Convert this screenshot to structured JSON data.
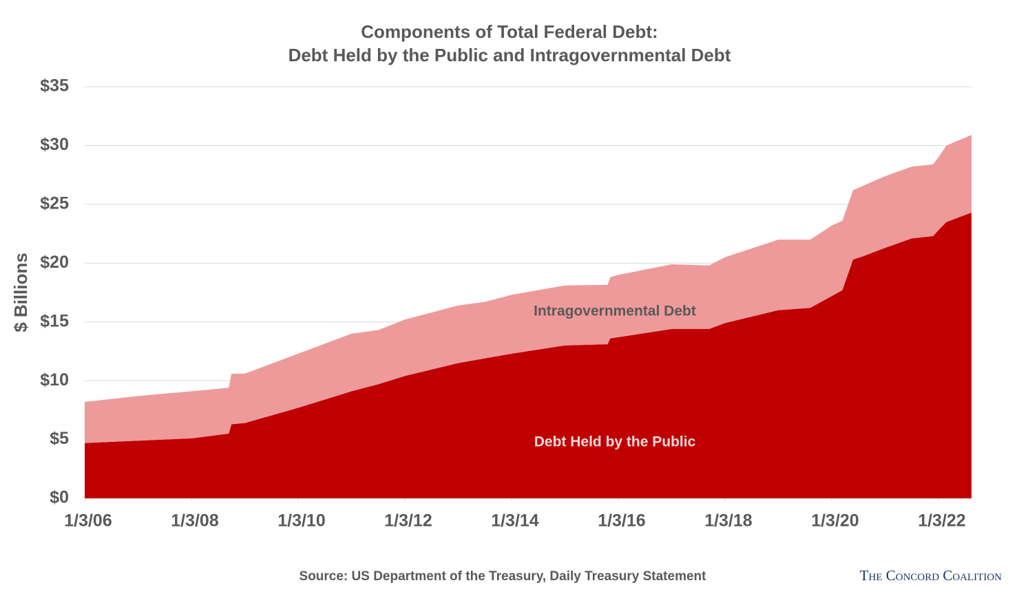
{
  "chart_data": {
    "type": "stacked_area",
    "title": "Components of Total Federal Debt:",
    "subtitle": "Debt Held by the Public and Intragovernmental Debt",
    "y_label": "$ Billions",
    "source": "Source: US Department of the Treasury, Daily Treasury Statement",
    "brand": "The Concord Coalition",
    "x": [
      2006,
      2007,
      2008,
      2008.7,
      2008.75,
      2009,
      2010,
      2011,
      2011.5,
      2012,
      2013,
      2013.5,
      2014,
      2015,
      2015.8,
      2015.85,
      2016,
      2017,
      2017.7,
      2018,
      2019,
      2019.6,
      2020,
      2020.2,
      2020.4,
      2020.6,
      2021,
      2021.5,
      2021.9,
      2022,
      2022.15,
      2022.62
    ],
    "series": [
      {
        "name": "Debt Held by the Public",
        "color": "#c00000",
        "values": [
          4.7,
          4.9,
          5.1,
          5.5,
          6.3,
          6.4,
          7.7,
          9.1,
          9.7,
          10.4,
          11.5,
          11.9,
          12.3,
          13.0,
          13.1,
          13.6,
          13.7,
          14.4,
          14.4,
          14.9,
          16.0,
          16.2,
          17.2,
          17.7,
          20.3,
          20.6,
          21.3,
          22.1,
          22.3,
          22.8,
          23.5,
          24.3
        ]
      },
      {
        "name": "Intragovernmental Debt",
        "color": "#ee9a9b",
        "values": [
          3.5,
          3.8,
          4.0,
          3.9,
          4.3,
          4.2,
          4.6,
          4.9,
          4.6,
          4.8,
          4.9,
          4.8,
          5.0,
          5.1,
          5.05,
          5.2,
          5.3,
          5.5,
          5.4,
          5.6,
          6.0,
          5.8,
          6.0,
          5.9,
          5.9,
          6.0,
          6.1,
          6.1,
          6.1,
          6.2,
          6.5,
          6.6
        ]
      }
    ],
    "xlim": [
      2006,
      2022.62
    ],
    "xticks": [
      {
        "value": 2006,
        "label": "1/3/06"
      },
      {
        "value": 2008,
        "label": "1/3/08"
      },
      {
        "value": 2010,
        "label": "1/3/10"
      },
      {
        "value": 2012,
        "label": "1/3/12"
      },
      {
        "value": 2014,
        "label": "1/3/14"
      },
      {
        "value": 2016,
        "label": "1/3/16"
      },
      {
        "value": 2018,
        "label": "1/3/18"
      },
      {
        "value": 2020,
        "label": "1/3/20"
      },
      {
        "value": 2022,
        "label": "1/3/22"
      }
    ],
    "ylim": [
      0,
      35
    ],
    "yticks": [
      {
        "value": 0,
        "label": "$0"
      },
      {
        "value": 5,
        "label": "$5"
      },
      {
        "value": 10,
        "label": "$10"
      },
      {
        "value": 15,
        "label": "$15"
      },
      {
        "value": 20,
        "label": "$20"
      },
      {
        "value": 25,
        "label": "$25"
      },
      {
        "value": 30,
        "label": "$30"
      },
      {
        "value": 35,
        "label": "$35"
      }
    ],
    "grid": true
  }
}
